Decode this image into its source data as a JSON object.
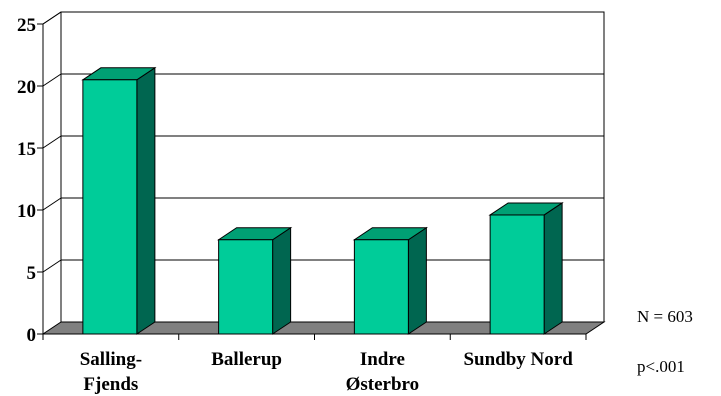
{
  "chart_data": {
    "type": "bar",
    "categories": [
      "Salling-\nFjends",
      "Ballerup",
      "Indre\nØsterbro",
      "Sundby Nord"
    ],
    "values": [
      20.5,
      7.6,
      7.6,
      9.6
    ],
    "title": "",
    "xlabel": "",
    "ylabel": "",
    "ylim": [
      0,
      25
    ],
    "yticks": [
      0,
      5,
      10,
      15,
      20,
      25
    ],
    "grid": true,
    "colors": {
      "bar_front": "#00CC99",
      "bar_top": "#00A074",
      "bar_side": "#006650",
      "floor": "#808080"
    }
  },
  "notes": {
    "n": "N = 603",
    "p": "p<.001"
  }
}
